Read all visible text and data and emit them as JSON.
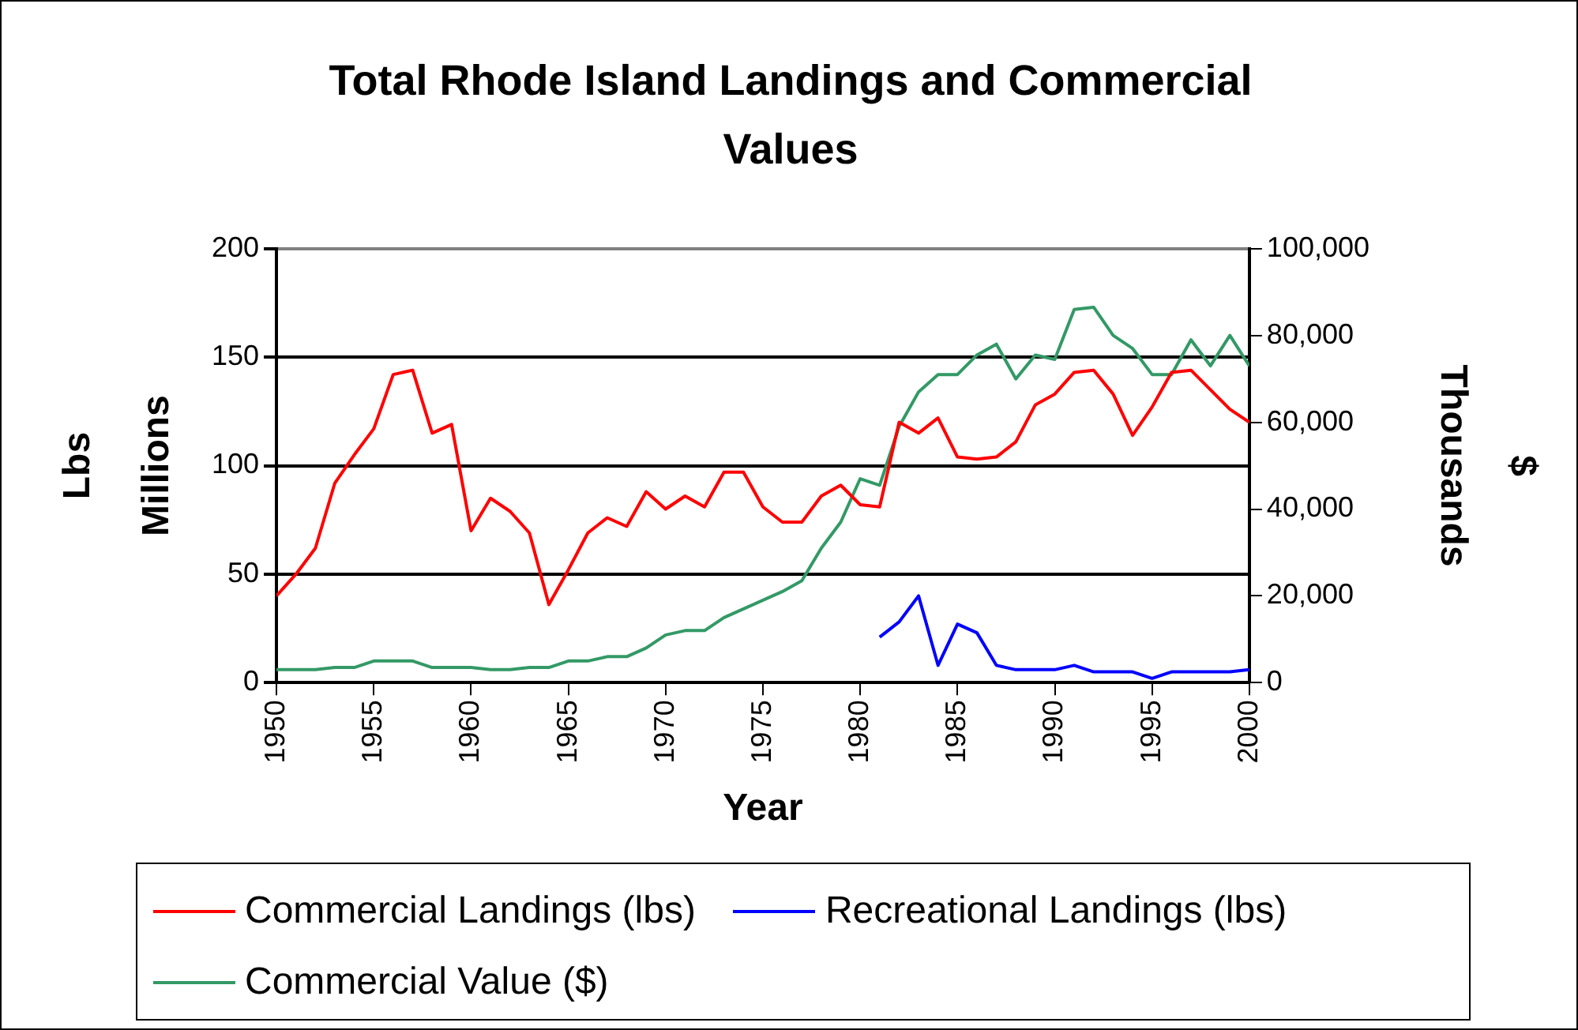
{
  "chart_data": {
    "type": "line",
    "title": [
      "Total Rhode Island Landings and Commercial",
      "Values"
    ],
    "xlabel": "Year",
    "ylabel": "Lbs",
    "y2label": "$",
    "annotations": [
      "Millions",
      "Thousands"
    ],
    "xlim": [
      1950,
      2000
    ],
    "xticks": [
      1950,
      1955,
      1960,
      1965,
      1970,
      1975,
      1980,
      1985,
      1990,
      1995,
      2000
    ],
    "ylim": [
      0,
      200
    ],
    "yticks": [
      0,
      50,
      100,
      150,
      200
    ],
    "y2lim": [
      0,
      100000
    ],
    "y2ticks": [
      {
        "value": 0,
        "label": "0"
      },
      {
        "value": 20000,
        "label": "20,000"
      },
      {
        "value": 40000,
        "label": "40,000"
      },
      {
        "value": 60000,
        "label": "60,000"
      },
      {
        "value": 80000,
        "label": "80,000"
      },
      {
        "value": 100000,
        "label": "100,000"
      }
    ],
    "grid": "y",
    "legend": "bottom",
    "marker": "none",
    "line_style": "solid",
    "series": [
      {
        "name": "Commercial Landings (lbs)",
        "color": "#ff0000",
        "x": [
          1950,
          1951,
          1952,
          1953,
          1954,
          1955,
          1956,
          1957,
          1958,
          1959,
          1960,
          1961,
          1962,
          1963,
          1964,
          1965,
          1966,
          1967,
          1968,
          1969,
          1970,
          1971,
          1972,
          1973,
          1974,
          1975,
          1976,
          1977,
          1978,
          1979,
          1980,
          1981,
          1982,
          1983,
          1984,
          1985,
          1986,
          1987,
          1988,
          1989,
          1990,
          1991,
          1992,
          1993,
          1994,
          1995,
          1996,
          1997,
          1998,
          1999,
          2000
        ],
        "values": [
          40,
          50,
          62,
          92,
          105,
          117,
          142,
          144,
          115,
          119,
          70,
          85,
          79,
          69,
          36,
          52,
          69,
          76,
          72,
          88,
          80,
          86,
          81,
          97,
          97,
          81,
          74,
          74,
          86,
          91,
          82,
          81,
          120,
          115,
          122,
          104,
          103,
          104,
          111,
          128,
          133,
          143,
          144,
          133,
          114,
          127,
          143,
          144,
          135,
          126,
          120
        ]
      },
      {
        "name": "Recreational Landings (lbs)",
        "color": "#0000ff",
        "x": [
          1981,
          1982,
          1983,
          1984,
          1985,
          1986,
          1987,
          1988,
          1989,
          1990,
          1991,
          1992,
          1993,
          1994,
          1995,
          1996,
          1997,
          1998,
          1999,
          2000
        ],
        "values": [
          21,
          28,
          40,
          8,
          27,
          23,
          8,
          6,
          6,
          6,
          8,
          5,
          5,
          5,
          2,
          5,
          5,
          5,
          5,
          6
        ]
      },
      {
        "name": "Commercial Value ($)",
        "color": "#339966",
        "axis": "y2",
        "x": [
          1950,
          1951,
          1952,
          1953,
          1954,
          1955,
          1956,
          1957,
          1958,
          1959,
          1960,
          1961,
          1962,
          1963,
          1964,
          1965,
          1966,
          1967,
          1968,
          1969,
          1970,
          1971,
          1972,
          1973,
          1974,
          1975,
          1976,
          1977,
          1978,
          1979,
          1980,
          1981,
          1982,
          1983,
          1984,
          1985,
          1986,
          1987,
          1988,
          1989,
          1990,
          1991,
          1992,
          1993,
          1994,
          1995,
          1996,
          1997,
          1998,
          1999,
          2000
        ],
        "values": [
          3000,
          3000,
          3000,
          3500,
          3500,
          5000,
          5000,
          5000,
          3500,
          3500,
          3500,
          3000,
          3000,
          3500,
          3500,
          5000,
          5000,
          6000,
          6000,
          8000,
          11000,
          12000,
          12000,
          15000,
          17000,
          19000,
          21000,
          23500,
          31000,
          37000,
          47000,
          45500,
          59000,
          67000,
          71000,
          71000,
          75500,
          78000,
          70000,
          75500,
          74500,
          86000,
          86500,
          80000,
          77000,
          71000,
          71000,
          79000,
          73000,
          80000,
          73000
        ]
      }
    ]
  }
}
